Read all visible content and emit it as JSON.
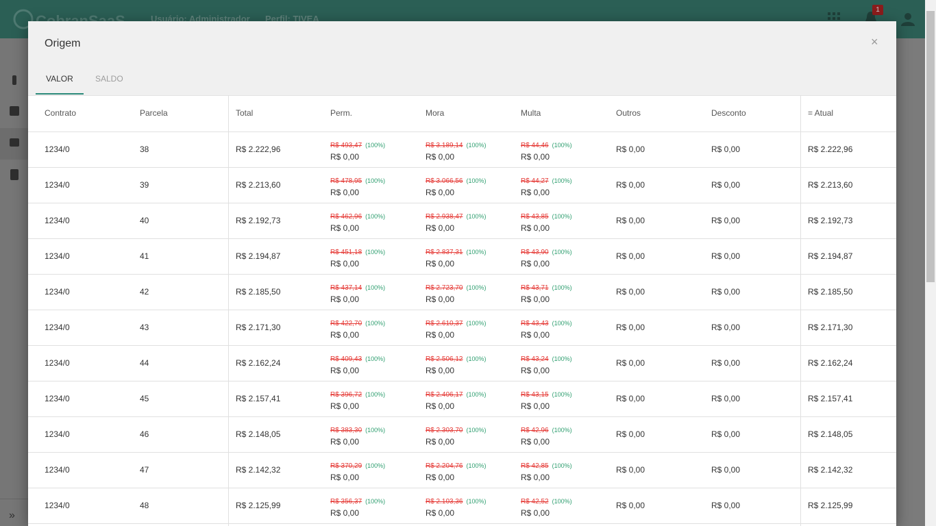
{
  "header": {
    "app_name": "CobranSaaS",
    "user": "Usuário: Administrador",
    "profile": "Perfil: TIVEA",
    "badge": "1"
  },
  "modal": {
    "title": "Origem",
    "close": "×",
    "tabs": [
      "VALOR",
      "SALDO"
    ]
  },
  "table": {
    "columns": [
      "Contrato",
      "Parcela",
      "Total",
      "Perm.",
      "Mora",
      "Multa",
      "Outros",
      "Desconto",
      "= Atual"
    ],
    "rows": [
      [
        "1234/0",
        "38",
        "R$ 2.222,96",
        [
          "R$ 493,47",
          "(100%)",
          "R$ 0,00"
        ],
        [
          "R$ 3.189,14",
          "(100%)",
          "R$ 0,00"
        ],
        [
          "R$ 44,46",
          "(100%)",
          "R$ 0,00"
        ],
        "R$ 0,00",
        "R$ 0,00",
        "R$ 2.222,96"
      ],
      [
        "1234/0",
        "39",
        "R$ 2.213,60",
        [
          "R$ 478,95",
          "(100%)",
          "R$ 0,00"
        ],
        [
          "R$ 3.066,56",
          "(100%)",
          "R$ 0,00"
        ],
        [
          "R$ 44,27",
          "(100%)",
          "R$ 0,00"
        ],
        "R$ 0,00",
        "R$ 0,00",
        "R$ 2.213,60"
      ],
      [
        "1234/0",
        "40",
        "R$ 2.192,73",
        [
          "R$ 462,96",
          "(100%)",
          "R$ 0,00"
        ],
        [
          "R$ 2.938,47",
          "(100%)",
          "R$ 0,00"
        ],
        [
          "R$ 43,85",
          "(100%)",
          "R$ 0,00"
        ],
        "R$ 0,00",
        "R$ 0,00",
        "R$ 2.192,73"
      ],
      [
        "1234/0",
        "41",
        "R$ 2.194,87",
        [
          "R$ 451,18",
          "(100%)",
          "R$ 0,00"
        ],
        [
          "R$ 2.837,31",
          "(100%)",
          "R$ 0,00"
        ],
        [
          "R$ 43,90",
          "(100%)",
          "R$ 0,00"
        ],
        "R$ 0,00",
        "R$ 0,00",
        "R$ 2.194,87"
      ],
      [
        "1234/0",
        "42",
        "R$ 2.185,50",
        [
          "R$ 437,14",
          "(100%)",
          "R$ 0,00"
        ],
        [
          "R$ 2.723,70",
          "(100%)",
          "R$ 0,00"
        ],
        [
          "R$ 43,71",
          "(100%)",
          "R$ 0,00"
        ],
        "R$ 0,00",
        "R$ 0,00",
        "R$ 2.185,50"
      ],
      [
        "1234/0",
        "43",
        "R$ 2.171,30",
        [
          "R$ 422,70",
          "(100%)",
          "R$ 0,00"
        ],
        [
          "R$ 2.610,37",
          "(100%)",
          "R$ 0,00"
        ],
        [
          "R$ 43,43",
          "(100%)",
          "R$ 0,00"
        ],
        "R$ 0,00",
        "R$ 0,00",
        "R$ 2.171,30"
      ],
      [
        "1234/0",
        "44",
        "R$ 2.162,24",
        [
          "R$ 409,43",
          "(100%)",
          "R$ 0,00"
        ],
        [
          "R$ 2.506,12",
          "(100%)",
          "R$ 0,00"
        ],
        [
          "R$ 43,24",
          "(100%)",
          "R$ 0,00"
        ],
        "R$ 0,00",
        "R$ 0,00",
        "R$ 2.162,24"
      ],
      [
        "1234/0",
        "45",
        "R$ 2.157,41",
        [
          "R$ 396,72",
          "(100%)",
          "R$ 0,00"
        ],
        [
          "R$ 2.406,17",
          "(100%)",
          "R$ 0,00"
        ],
        [
          "R$ 43,15",
          "(100%)",
          "R$ 0,00"
        ],
        "R$ 0,00",
        "R$ 0,00",
        "R$ 2.157,41"
      ],
      [
        "1234/0",
        "46",
        "R$ 2.148,05",
        [
          "R$ 383,30",
          "(100%)",
          "R$ 0,00"
        ],
        [
          "R$ 2.303,70",
          "(100%)",
          "R$ 0,00"
        ],
        [
          "R$ 42,96",
          "(100%)",
          "R$ 0,00"
        ],
        "R$ 0,00",
        "R$ 0,00",
        "R$ 2.148,05"
      ],
      [
        "1234/0",
        "47",
        "R$ 2.142,32",
        [
          "R$ 370,29",
          "(100%)",
          "R$ 0,00"
        ],
        [
          "R$ 2.204,76",
          "(100%)",
          "R$ 0,00"
        ],
        [
          "R$ 42,85",
          "(100%)",
          "R$ 0,00"
        ],
        "R$ 0,00",
        "R$ 0,00",
        "R$ 2.142,32"
      ],
      [
        "1234/0",
        "48",
        "R$ 2.125,99",
        [
          "R$ 356,37",
          "(100%)",
          "R$ 0,00"
        ],
        [
          "R$ 2.103,36",
          "(100%)",
          "R$ 0,00"
        ],
        [
          "R$ 42,52",
          "(100%)",
          "R$ 0,00"
        ],
        "R$ 0,00",
        "R$ 0,00",
        "R$ 2.125,99"
      ]
    ]
  }
}
